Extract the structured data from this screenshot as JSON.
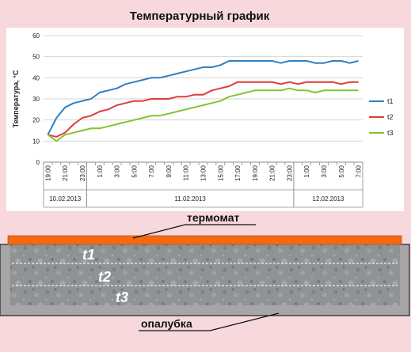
{
  "chart_data": {
    "type": "line",
    "title": "Температурный график",
    "ylabel": "Температура, °C",
    "xlabel": "",
    "ylim": [
      0,
      60
    ],
    "yticks": [
      0,
      10,
      20,
      30,
      40,
      50,
      60
    ],
    "x": [
      "19:00",
      "20:00",
      "21:00",
      "22:00",
      "23:00",
      "0:00",
      "1:00",
      "2:00",
      "3:00",
      "4:00",
      "5:00",
      "6:00",
      "7:00",
      "8:00",
      "9:00",
      "10:00",
      "11:00",
      "12:00",
      "13:00",
      "14:00",
      "15:00",
      "16:00",
      "17:00",
      "18:00",
      "19:00",
      "20:00",
      "21:00",
      "22:00",
      "23:00",
      "0:00",
      "1:00",
      "2:00",
      "3:00",
      "4:00",
      "5:00",
      "6:00",
      "7:00"
    ],
    "x_tick_labels": [
      "19:00",
      "21:00",
      "23:00",
      "1:00",
      "3:00",
      "5:00",
      "7:00",
      "9:00",
      "11:00",
      "13:00",
      "15:00",
      "17:00",
      "19:00",
      "21:00",
      "23:00",
      "1:00",
      "3:00",
      "5:00",
      "7:00"
    ],
    "date_groups": [
      {
        "label": "10.02.2013",
        "from": 0,
        "to": 5
      },
      {
        "label": "11.02.2013",
        "from": 5,
        "to": 29
      },
      {
        "label": "12.02.2013",
        "from": 29,
        "to": 37
      }
    ],
    "series": [
      {
        "name": "t1",
        "color": "#2f7fc1",
        "values": [
          13,
          21,
          26,
          28,
          29,
          30,
          33,
          34,
          35,
          37,
          38,
          39,
          40,
          40,
          41,
          42,
          43,
          44,
          45,
          45,
          46,
          48,
          48,
          48,
          48,
          48,
          48,
          47,
          48,
          48,
          48,
          47,
          47,
          48,
          48,
          47,
          48
        ]
      },
      {
        "name": "t2",
        "color": "#e23a3a",
        "values": [
          13,
          12,
          14,
          18,
          21,
          22,
          24,
          25,
          27,
          28,
          29,
          29,
          30,
          30,
          30,
          31,
          31,
          32,
          32,
          34,
          35,
          36,
          38,
          38,
          38,
          38,
          38,
          37,
          38,
          37,
          38,
          38,
          38,
          38,
          37,
          38,
          38
        ]
      },
      {
        "name": "t3",
        "color": "#86c232",
        "values": [
          13,
          10,
          13,
          14,
          15,
          16,
          16,
          17,
          18,
          19,
          20,
          21,
          22,
          22,
          23,
          24,
          25,
          26,
          27,
          28,
          29,
          31,
          32,
          33,
          34,
          34,
          34,
          34,
          35,
          34,
          34,
          33,
          34,
          34,
          34,
          34,
          34
        ]
      }
    ],
    "legend": "right",
    "grid": "horizontal"
  },
  "diagram": {
    "label_top": "термомат",
    "label_bottom": "опалубка",
    "layers": [
      "t1",
      "t2",
      "t3"
    ]
  }
}
